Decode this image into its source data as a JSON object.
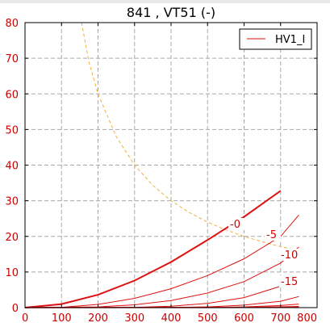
{
  "chart_data": {
    "type": "line",
    "title": "841 , VT51  (-)",
    "xlabel": "",
    "ylabel": "",
    "xlim": [
      0,
      800
    ],
    "ylim": [
      0,
      80
    ],
    "xticks": [
      0,
      100,
      200,
      300,
      400,
      500,
      600,
      700,
      800
    ],
    "yticks": [
      0,
      10,
      20,
      30,
      40,
      50,
      60,
      70,
      80
    ],
    "grid": true,
    "legend": {
      "placement": "top-right",
      "entries": [
        "HV1_I"
      ]
    },
    "colors": {
      "curve": "#dd1111",
      "limit": "#f0b040",
      "tick_labels": "#cc0000"
    },
    "series": [
      {
        "name": "HV1_I",
        "label": "-0",
        "width": 2,
        "x": [
          0,
          100,
          200,
          300,
          400,
          500,
          600,
          700
        ],
        "y": [
          0,
          1.0,
          3.6,
          7.6,
          12.8,
          19.0,
          25.5,
          32.8
        ]
      },
      {
        "label": "-5",
        "width": 1,
        "x": [
          0,
          100,
          200,
          300,
          400,
          500,
          600,
          700,
          750
        ],
        "y": [
          0,
          0.1,
          0.9,
          2.6,
          5.3,
          9.0,
          13.7,
          20.0,
          26.0
        ]
      },
      {
        "label": "-10",
        "width": 1,
        "x": [
          0,
          200,
          300,
          400,
          500,
          600,
          700,
          750
        ],
        "y": [
          0,
          0.2,
          0.8,
          2.0,
          4.1,
          7.3,
          12.5,
          17.0
        ]
      },
      {
        "label": "-15",
        "width": 1,
        "x": [
          0,
          300,
          400,
          500,
          600,
          700,
          750
        ],
        "y": [
          0,
          0.1,
          0.4,
          1.2,
          2.8,
          6.0,
          9.0
        ]
      },
      {
        "label": "",
        "width": 1,
        "x": [
          0,
          400,
          500,
          600,
          700,
          750
        ],
        "y": [
          0,
          0.05,
          0.2,
          0.7,
          1.8,
          3.1
        ]
      },
      {
        "label": "",
        "width": 1,
        "x": [
          0,
          500,
          600,
          700,
          750
        ],
        "y": [
          0,
          0.05,
          0.2,
          0.6,
          1.0
        ]
      },
      {
        "label": "",
        "width": 1.5,
        "x": [
          0,
          600,
          700,
          750
        ],
        "y": [
          0,
          0.05,
          0.15,
          0.3
        ]
      }
    ],
    "limit_curve": {
      "style": "dashed",
      "x": [
        155,
        175,
        200,
        250,
        300,
        350,
        400,
        450,
        500,
        550,
        600,
        650,
        700,
        750
      ],
      "y": [
        80,
        69,
        60,
        48,
        40,
        34.3,
        30,
        26.7,
        24,
        21.8,
        20,
        18.5,
        17.1,
        16
      ]
    }
  }
}
